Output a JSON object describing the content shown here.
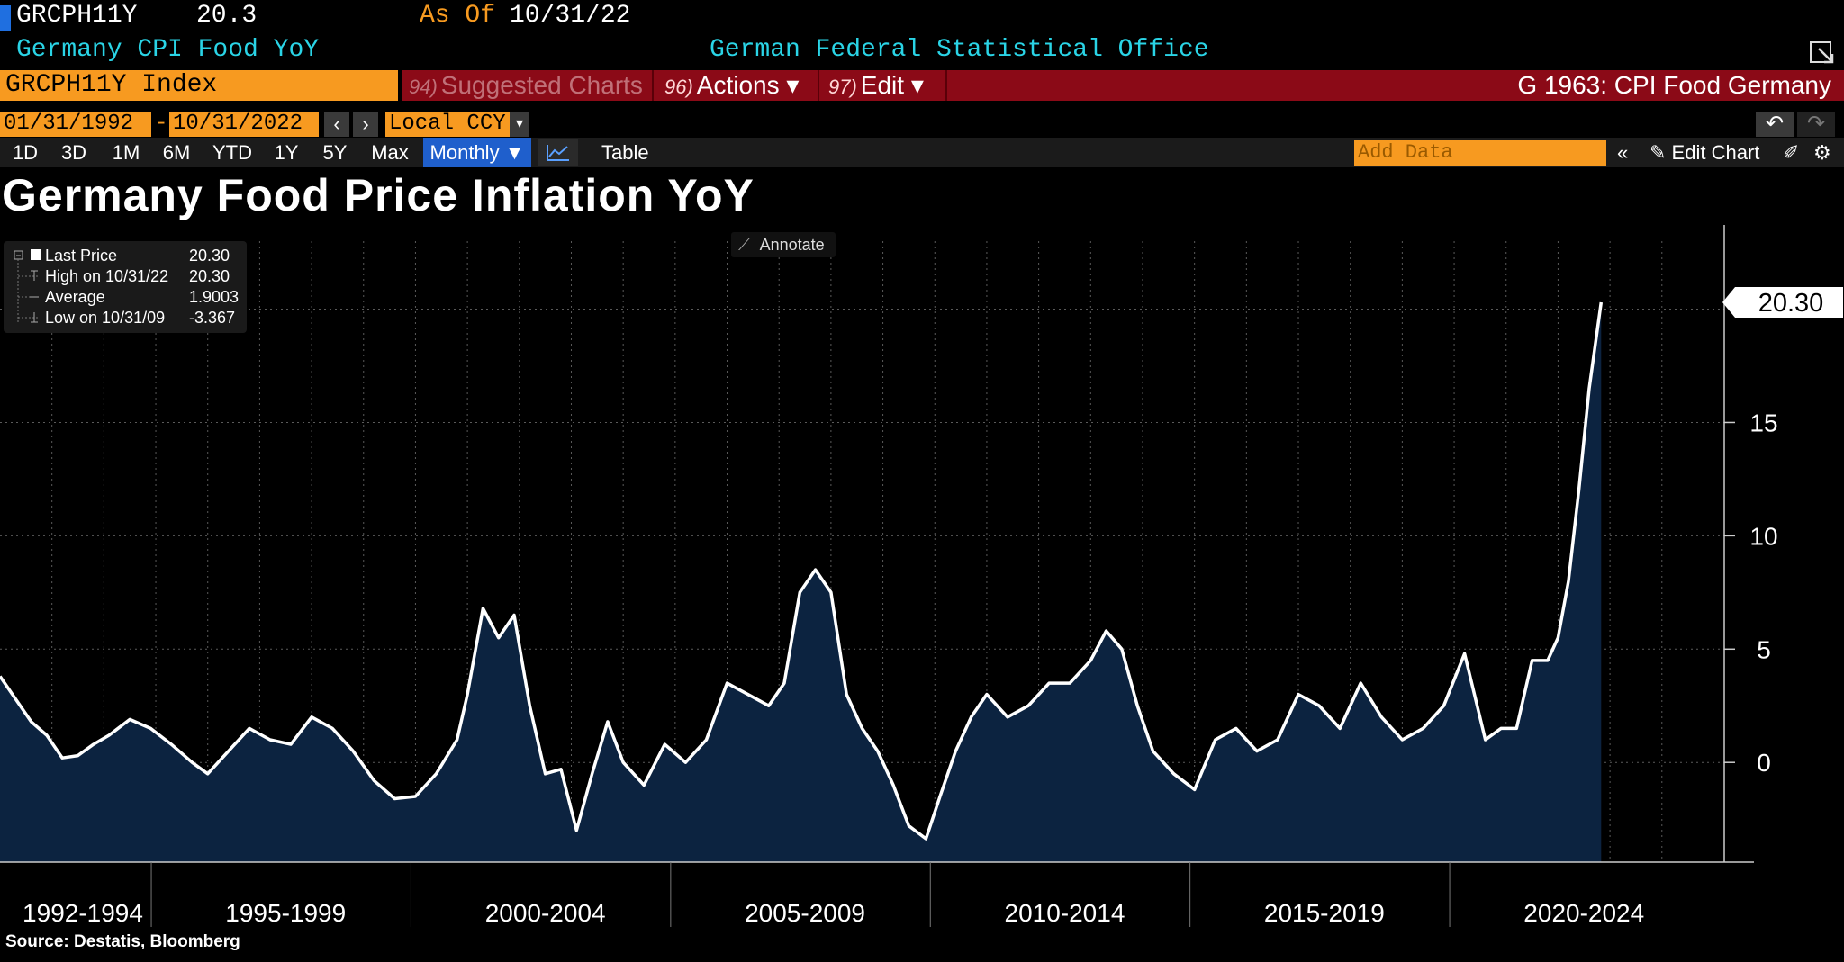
{
  "header": {
    "ticker": "GRCPH11Y",
    "last_value": "20.3",
    "as_of_label": "As Of",
    "as_of_date": "10/31/22",
    "subtitle": "Germany CPI Food YoY",
    "source_office": "German Federal Statistical Office"
  },
  "menubar": {
    "index_name": "GRCPH11Y Index",
    "suggested_num": "94)",
    "suggested_label": "Suggested Charts",
    "actions_num": "96)",
    "actions_label": "Actions ▾",
    "edit_num": "97)",
    "edit_label": "Edit ▾",
    "graph_id": "G 1963: CPI Food Germany"
  },
  "controls": {
    "start_date": "01/31/1992",
    "end_date": "10/31/2022",
    "date_separator": "-",
    "currency": "Local CCY",
    "periods": [
      "1D",
      "3D",
      "1M",
      "6M",
      "YTD",
      "1Y",
      "5Y",
      "Max"
    ],
    "frequency": "Monthly ▼",
    "table_label": "Table",
    "add_data_placeholder": "Add Data",
    "edit_chart_label": "Edit Chart"
  },
  "legend": {
    "last_price_label": "Last Price",
    "last_price_value": "20.30",
    "high_label": "High on 10/31/22",
    "high_value": "20.30",
    "average_label": "Average",
    "average_value": "1.9003",
    "low_label": "Low on 10/31/09",
    "low_value": "-3.367"
  },
  "annotate_label": "Annotate",
  "source_note": "Source: Destatis, Bloomberg",
  "colors": {
    "orange": "#f79a20",
    "cyan": "#2ad4e6",
    "red": "#8b0a17",
    "area_fill": "#0c2340",
    "line": "#ffffff"
  },
  "chart_data": {
    "type": "area",
    "title": "Germany Food Price Inflation YoY",
    "xlabel": "",
    "ylabel": "",
    "ylim": [
      -4.4,
      23
    ],
    "y_ticks": [
      0,
      5,
      10,
      15
    ],
    "y_tick_labels": [
      "0",
      "5",
      "10",
      "15"
    ],
    "x_period_labels": [
      "1992-1994",
      "1995-1999",
      "2000-2004",
      "2005-2009",
      "2010-2014",
      "2015-2019",
      "2020-2024"
    ],
    "x_range": [
      1992.0,
      2025.2
    ],
    "last_value_label": "20.30",
    "series": [
      {
        "name": "GRCPH11Y Index",
        "x": [
          1992.0,
          1992.3,
          1992.6,
          1992.9,
          1993.2,
          1993.5,
          1993.8,
          1994.1,
          1994.5,
          1994.9,
          1995.3,
          1995.7,
          1996.0,
          1996.4,
          1996.8,
          1997.2,
          1997.6,
          1998.0,
          1998.4,
          1998.8,
          1999.2,
          1999.6,
          2000.0,
          2000.4,
          2000.8,
          2001.0,
          2001.3,
          2001.6,
          2001.9,
          2002.2,
          2002.5,
          2002.8,
          2003.1,
          2003.4,
          2003.7,
          2004.0,
          2004.4,
          2004.8,
          2005.2,
          2005.6,
          2006.0,
          2006.4,
          2006.8,
          2007.1,
          2007.4,
          2007.7,
          2008.0,
          2008.3,
          2008.6,
          2008.9,
          2009.2,
          2009.5,
          2009.83,
          2010.1,
          2010.4,
          2010.7,
          2011.0,
          2011.4,
          2011.8,
          2012.2,
          2012.6,
          2013.0,
          2013.3,
          2013.6,
          2013.9,
          2014.2,
          2014.6,
          2015.0,
          2015.4,
          2015.8,
          2016.2,
          2016.6,
          2017.0,
          2017.4,
          2017.8,
          2018.2,
          2018.6,
          2019.0,
          2019.4,
          2019.8,
          2020.2,
          2020.6,
          2020.9,
          2021.2,
          2021.5,
          2021.8,
          2022.0,
          2022.2,
          2022.4,
          2022.6,
          2022.83
        ],
        "values": [
          3.8,
          2.8,
          1.8,
          1.2,
          0.2,
          0.3,
          0.8,
          1.2,
          1.9,
          1.5,
          0.8,
          0.0,
          -0.5,
          0.5,
          1.5,
          1.0,
          0.8,
          2.0,
          1.5,
          0.5,
          -0.8,
          -1.6,
          -1.5,
          -0.5,
          1.0,
          3.0,
          6.8,
          5.5,
          6.5,
          2.5,
          -0.5,
          -0.3,
          -3.0,
          -0.5,
          1.8,
          0.0,
          -1.0,
          0.8,
          0.0,
          1.0,
          3.5,
          3.0,
          2.5,
          3.5,
          7.5,
          8.5,
          7.5,
          3.0,
          1.5,
          0.5,
          -1.0,
          -2.8,
          -3.367,
          -1.5,
          0.5,
          2.0,
          3.0,
          2.0,
          2.5,
          3.5,
          3.5,
          4.5,
          5.8,
          5.0,
          2.5,
          0.5,
          -0.5,
          -1.2,
          1.0,
          1.5,
          0.5,
          1.0,
          3.0,
          2.5,
          1.5,
          3.5,
          2.0,
          1.0,
          1.5,
          2.5,
          4.8,
          1.0,
          1.5,
          1.5,
          4.5,
          4.5,
          5.5,
          8.0,
          12.0,
          16.5,
          20.3
        ]
      }
    ]
  }
}
